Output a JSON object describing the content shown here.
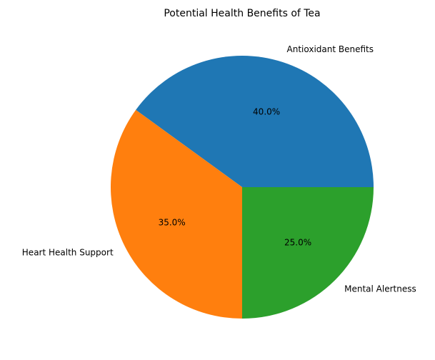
{
  "chart_data": {
    "type": "pie",
    "title": "Potential Health Benefits of Tea",
    "categories": [
      "Antioxidant Benefits",
      "Heart Health Support",
      "Mental Alertness"
    ],
    "values": [
      40.0,
      35.0,
      25.0
    ],
    "percent_labels": [
      "40.0%",
      "35.0%",
      "25.0%"
    ],
    "colors": [
      "#1f77b4",
      "#ff7f0e",
      "#2ca02c"
    ],
    "start_angle": "3 o'clock",
    "direction": "counterclockwise",
    "legend": "none"
  }
}
